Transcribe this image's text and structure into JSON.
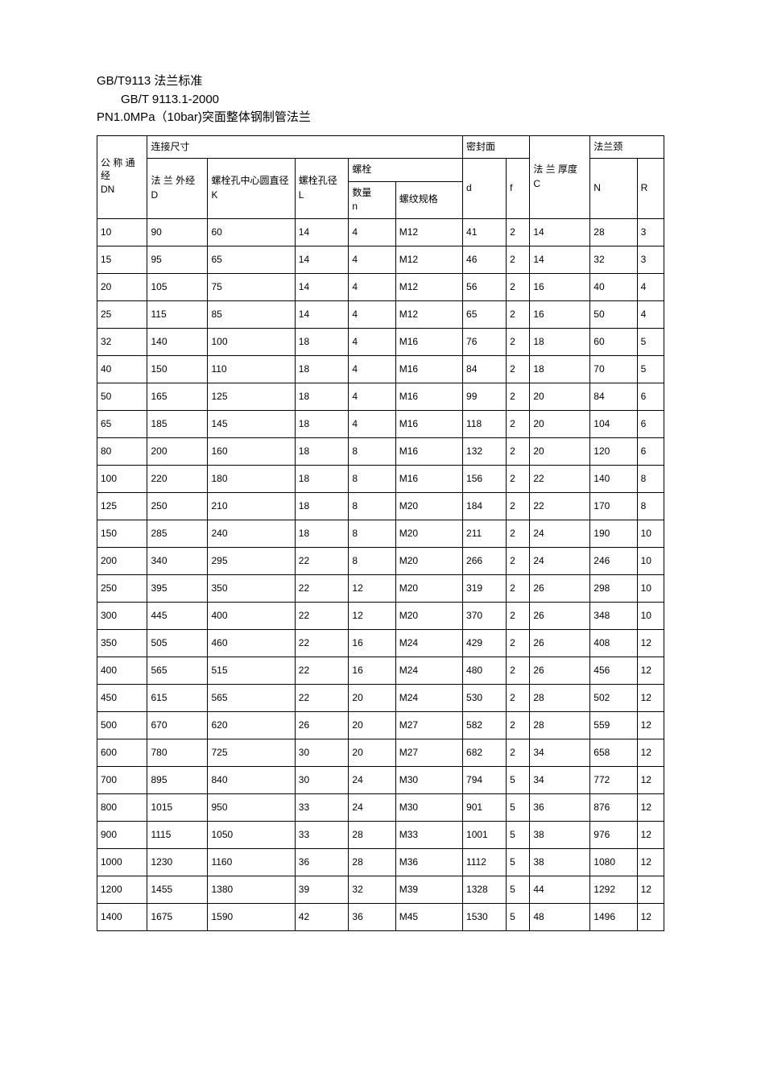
{
  "titles": {
    "main": "GB/T9113 法兰标准",
    "sub": "GB/T  9113.1-2000",
    "desc": "PN1.0MPa（10bar)突面整体钢制管法兰"
  },
  "header": {
    "dn_label": "公 称 通经",
    "dn_sub": "DN",
    "conn_label": "连接尺寸",
    "d_label": "法 兰 外经",
    "d_sub": "D",
    "k_label": "螺栓孔中心圆直径",
    "k_sub": "K",
    "l_label": "螺栓孔径",
    "l_sub": "L",
    "bolt_label": "螺栓",
    "n_label": "数量",
    "n_sub": "n",
    "spec_label": "螺纹规格",
    "seal_label": "密封面",
    "ld": "d",
    "f": "f",
    "c_label": "法 兰 厚度",
    "c_sub": "C",
    "neck_label": "法兰颈",
    "nn": "N",
    "r": "R"
  },
  "rows": [
    [
      "10",
      "90",
      "60",
      "14",
      "4",
      "M12",
      "41",
      "2",
      "14",
      "28",
      "3"
    ],
    [
      "15",
      "95",
      "65",
      "14",
      "4",
      "M12",
      "46",
      "2",
      "14",
      "32",
      "3"
    ],
    [
      "20",
      "105",
      "75",
      "14",
      "4",
      "M12",
      "56",
      "2",
      "16",
      "40",
      "4"
    ],
    [
      "25",
      "115",
      "85",
      "14",
      "4",
      "M12",
      "65",
      "2",
      "16",
      "50",
      "4"
    ],
    [
      "32",
      "140",
      "100",
      "18",
      "4",
      "M16",
      "76",
      "2",
      "18",
      "60",
      "5"
    ],
    [
      "40",
      "150",
      "110",
      "18",
      "4",
      "M16",
      "84",
      "2",
      "18",
      "70",
      "5"
    ],
    [
      "50",
      "165",
      "125",
      "18",
      "4",
      "M16",
      "99",
      "2",
      "20",
      "84",
      "6"
    ],
    [
      "65",
      "185",
      "145",
      "18",
      "4",
      "M16",
      "118",
      "2",
      "20",
      "104",
      "6"
    ],
    [
      "80",
      "200",
      "160",
      "18",
      "8",
      "M16",
      "132",
      "2",
      "20",
      "120",
      "6"
    ],
    [
      "100",
      "220",
      "180",
      "18",
      "8",
      "M16",
      "156",
      "2",
      "22",
      "140",
      "8"
    ],
    [
      "125",
      "250",
      "210",
      "18",
      "8",
      "M20",
      "184",
      "2",
      "22",
      "170",
      "8"
    ],
    [
      "150",
      "285",
      "240",
      "18",
      "8",
      "M20",
      "211",
      "2",
      "24",
      "190",
      "10"
    ],
    [
      "200",
      "340",
      "295",
      "22",
      "8",
      "M20",
      "266",
      "2",
      "24",
      "246",
      "10"
    ],
    [
      "250",
      "395",
      "350",
      "22",
      "12",
      "M20",
      "319",
      "2",
      "26",
      "298",
      "10"
    ],
    [
      "300",
      "445",
      "400",
      "22",
      "12",
      "M20",
      "370",
      "2",
      "26",
      "348",
      "10"
    ],
    [
      "350",
      "505",
      "460",
      "22",
      "16",
      "M24",
      "429",
      "2",
      "26",
      "408",
      "12"
    ],
    [
      "400",
      "565",
      "515",
      "22",
      "16",
      "M24",
      "480",
      "2",
      "26",
      "456",
      "12"
    ],
    [
      "450",
      "615",
      "565",
      "22",
      "20",
      "M24",
      "530",
      "2",
      "28",
      "502",
      "12"
    ],
    [
      "500",
      "670",
      "620",
      "26",
      "20",
      "M27",
      "582",
      "2",
      "28",
      "559",
      "12"
    ],
    [
      "600",
      "780",
      "725",
      "30",
      "20",
      "M27",
      "682",
      "2",
      "34",
      "658",
      "12"
    ],
    [
      "700",
      "895",
      "840",
      "30",
      "24",
      "M30",
      "794",
      "5",
      "34",
      "772",
      "12"
    ],
    [
      "800",
      "1015",
      "950",
      "33",
      "24",
      "M30",
      "901",
      "5",
      "36",
      "876",
      "12"
    ],
    [
      "900",
      "1115",
      "1050",
      "33",
      "28",
      "M33",
      "1001",
      "5",
      "38",
      "976",
      "12"
    ],
    [
      "1000",
      "1230",
      "1160",
      "36",
      "28",
      "M36",
      "1112",
      "5",
      "38",
      "1080",
      "12"
    ],
    [
      "1200",
      "1455",
      "1380",
      "39",
      "32",
      "M39",
      "1328",
      "5",
      "44",
      "1292",
      "12"
    ],
    [
      "1400",
      "1675",
      "1590",
      "42",
      "36",
      "M45",
      "1530",
      "5",
      "48",
      "1496",
      "12"
    ]
  ]
}
